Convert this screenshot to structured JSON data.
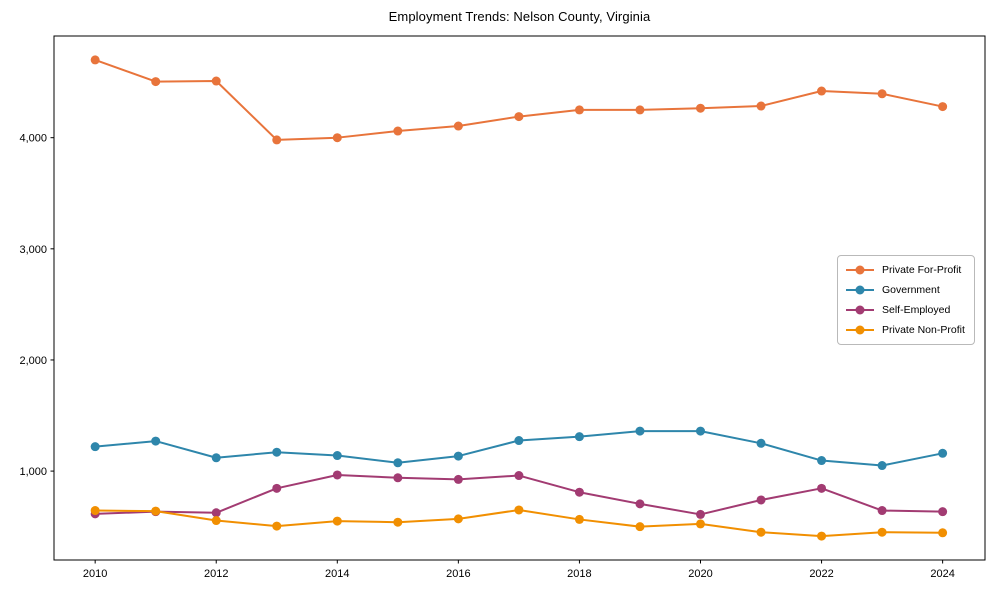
{
  "chart_data": {
    "type": "line",
    "title": "Employment Trends: Nelson County, Virginia",
    "xlabel": "",
    "ylabel": "",
    "x": [
      2010,
      2011,
      2012,
      2013,
      2014,
      2015,
      2016,
      2017,
      2018,
      2019,
      2020,
      2021,
      2022,
      2023,
      2024
    ],
    "series": [
      {
        "name": "Private For-Profit",
        "color": "#E8743B",
        "values": [
          4700,
          4505,
          4510,
          3980,
          4000,
          4060,
          4105,
          4190,
          4250,
          4250,
          4265,
          4285,
          4420,
          4395,
          4280
        ]
      },
      {
        "name": "Government",
        "color": "#2E86AB",
        "values": [
          1220,
          1270,
          1120,
          1170,
          1140,
          1075,
          1135,
          1275,
          1310,
          1360,
          1360,
          1250,
          1095,
          1050,
          1160
        ]
      },
      {
        "name": "Self-Employed",
        "color": "#A23B72",
        "values": [
          615,
          635,
          625,
          845,
          965,
          940,
          925,
          960,
          810,
          705,
          610,
          740,
          845,
          645,
          635
        ]
      },
      {
        "name": "Private Non-Profit",
        "color": "#F18F01",
        "values": [
          645,
          640,
          555,
          505,
          550,
          540,
          570,
          650,
          565,
          500,
          525,
          450,
          415,
          450,
          445
        ]
      }
    ],
    "xticks": [
      2010,
      2012,
      2014,
      2016,
      2018,
      2020,
      2022,
      2024
    ],
    "yticks": [
      1000,
      2000,
      3000,
      4000
    ],
    "ytick_labels": [
      "1,000",
      "2,000",
      "3,000",
      "4,000"
    ],
    "xlim": [
      2009.32,
      2024.7
    ],
    "ylim": [
      200,
      4915
    ],
    "grid": false,
    "legend_position": "center-right",
    "marker": "circle",
    "axis_color": "#000000"
  }
}
